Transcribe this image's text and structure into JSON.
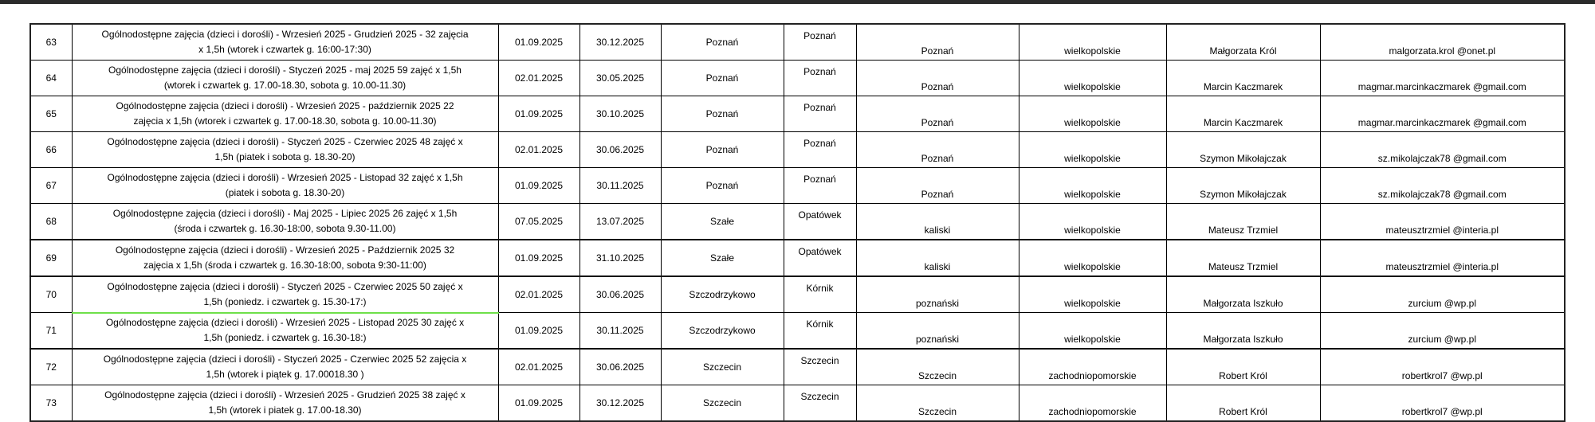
{
  "rows": [
    {
      "nr": "63",
      "desc": [
        "Ogólnodostępne zajęcia  (dzieci i dorośli) - Wrzesień 2025 - Grudzień 2025 - 32 zajęcia",
        "x 1,5h (wtorek i czwartek g. 16:00-17:30)"
      ],
      "start": "01.09.2025",
      "end": "30.12.2025",
      "city": "Poznań",
      "gmina": "Poznań",
      "powiat": "Poznań",
      "woj": "wielkopolskie",
      "person": "Małgorzata Król",
      "email": "malgorzata.krol @onet.pl"
    },
    {
      "nr": "64",
      "desc": [
        "Ogólnodostępne zajęcia  (dzieci i dorośli) - Styczeń 2025 - maj 2025 59 zajęć  x 1,5h",
        "(wtorek i czwartek g. 17.00-18.30, sobota g. 10.00-11.30)"
      ],
      "start": "02.01.2025",
      "end": "30.05.2025",
      "city": "Poznań",
      "gmina": "Poznań",
      "powiat": "Poznań",
      "woj": "wielkopolskie",
      "person": "Marcin Kaczmarek",
      "email": "magmar.marcinkaczmarek  @gmail.com"
    },
    {
      "nr": "65",
      "desc": [
        "Ogólnodostępne zajęcia  (dzieci i dorośli) - Wrzesień 2025 - październik 2025 22",
        "zajęcia  x 1,5h (wtorek i czwartek g. 17.00-18.30, sobota g. 10.00-11.30)"
      ],
      "start": "01.09.2025",
      "end": "30.10.2025",
      "city": "Poznań",
      "gmina": "Poznań",
      "powiat": "Poznań",
      "woj": "wielkopolskie",
      "person": "Marcin Kaczmarek",
      "email": "magmar.marcinkaczmarek  @gmail.com"
    },
    {
      "nr": "66",
      "desc": [
        "Ogólnodostępne zajęcia  (dzieci i dorośli) - Styczeń 2025 - Czerwiec 2025 48 zajęć  x",
        "1,5h (piatek i sobota g. 18.30-20)"
      ],
      "start": "02.01.2025",
      "end": "30.06.2025",
      "city": "Poznań",
      "gmina": "Poznań",
      "powiat": "Poznań",
      "woj": "wielkopolskie",
      "person": "Szymon Mikołajczak",
      "email": "sz.mikolajczak78  @gmail.com"
    },
    {
      "nr": "67",
      "desc": [
        "Ogólnodostępne zajęcia  (dzieci i dorośli) - Wrzesień 2025 - Listopad 32 zajęć  x 1,5h",
        "(piatek i sobota g. 18.30-20)"
      ],
      "start": "01.09.2025",
      "end": "30.11.2025",
      "city": "Poznań",
      "gmina": "Poznań",
      "powiat": "Poznań",
      "woj": "wielkopolskie",
      "person": "Szymon Mikołajczak",
      "email": "sz.mikolajczak78  @gmail.com"
    },
    {
      "nr": "68",
      "desc": [
        "Ogólnodostępne zajęcia  (dzieci i dorośli) - Maj 2025 - Lipiec 2025 26 zajęć  x 1,5h",
        "(środa i czwartek g. 16.30-18:00, sobota 9.30-11.00)"
      ],
      "start": "07.05.2025",
      "end": "13.07.2025",
      "city": "Szałe",
      "gmina": "Opatówek",
      "powiat": "kaliski",
      "woj": "wielkopolskie",
      "person": "Mateusz Trzmiel",
      "email": "mateusztrzmiel  @interia.pl"
    },
    {
      "nr": "69",
      "desc": [
        "Ogólnodostępne zajęcia  (dzieci i dorośli) - Wrzesień 2025 - Październik 2025 32",
        "zajęcia  x 1,5h (środa i czwartek g. 16.30-18:00, sobota 9:30-11:00)"
      ],
      "start": "01.09.2025",
      "end": "31.10.2025",
      "city": "Szałe",
      "gmina": "Opatówek",
      "powiat": "kaliski",
      "woj": "wielkopolskie",
      "person": "Mateusz Trzmiel",
      "email": "mateusztrzmiel  @interia.pl"
    },
    {
      "nr": "70",
      "desc": [
        "Ogólnodostępne zajęcia  (dzieci i dorośli) - Styczeń 2025 - Czerwiec 2025 50 zajęć  x",
        "1,5h (poniedz. i czwartek g. 15.30-17:)"
      ],
      "start": "02.01.2025",
      "end": "30.06.2025",
      "city": "Szczodrzykowo",
      "gmina": "Kórnik",
      "powiat": "poznański",
      "woj": "wielkopolskie",
      "person": "Małgorzata Iszkuło",
      "email": "zurcium  @wp.pl"
    },
    {
      "nr": "71",
      "desc": [
        "Ogólnodostępne zajęcia  (dzieci i dorośli) - Wrzesień 2025 - Listopad 2025 30 zajęć  x",
        "1,5h (poniedz. i czwartek g. 16.30-18:)"
      ],
      "start": "01.09.2025",
      "end": "30.11.2025",
      "city": "Szczodrzykowo",
      "gmina": "Kórnik",
      "powiat": "poznański",
      "woj": "wielkopolskie",
      "person": "Małgorzata Iszkuło",
      "email": "zurcium  @wp.pl"
    },
    {
      "nr": "72",
      "desc": [
        "Ogólnodostępne zajęcia  (dzieci i dorośli) - Styczeń 2025 - Czerwiec 2025 52 zajęcia  x",
        "1,5h (wtorek i piątek g. 17.00018.30 )"
      ],
      "start": "02.01.2025",
      "end": "30.06.2025",
      "city": "Szczecin",
      "gmina": "Szczecin",
      "powiat": "Szczecin",
      "woj": "zachodniopomorskie",
      "person": "Robert Król",
      "email": "robertkrol7  @wp.pl"
    },
    {
      "nr": "73",
      "desc": [
        "Ogólnodostępne zajęcia  (dzieci i dorośli) - Wrzesień 2025 - Grudzień 2025  38 zajęć  x",
        "1,5h (wtorek i piatek g. 17.00-18.30)"
      ],
      "start": "01.09.2025",
      "end": "30.12.2025",
      "city": "Szczecin",
      "gmina": "Szczecin",
      "powiat": "Szczecin",
      "woj": "zachodniopomorskie",
      "person": "Robert Król",
      "email": "robertkrol7  @wp.pl"
    }
  ]
}
